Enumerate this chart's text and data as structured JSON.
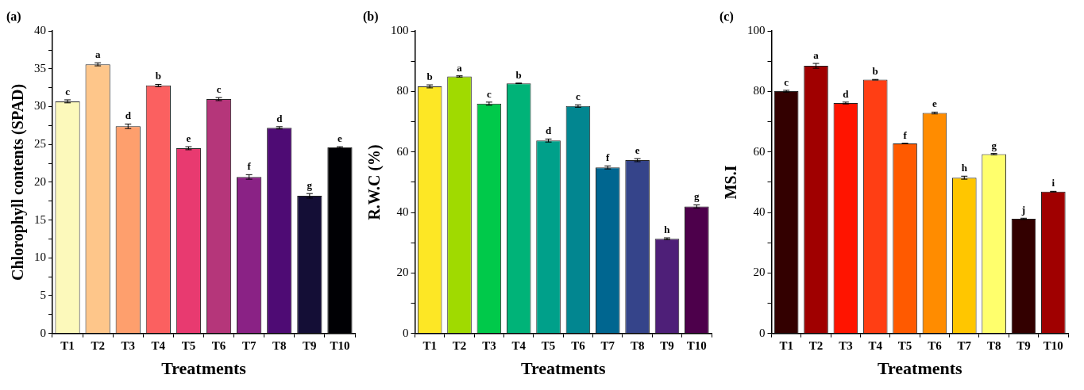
{
  "chart_data": [
    {
      "type": "bar",
      "title": "(a)",
      "xlabel": "Treatments",
      "ylabel": "Chlorophyll contents (SPAD)",
      "categories": [
        "T1",
        "T2",
        "T3",
        "T4",
        "T5",
        "T6",
        "T7",
        "T8",
        "T9",
        "T10"
      ],
      "values": [
        30.7,
        35.6,
        27.4,
        32.8,
        24.5,
        31.0,
        20.7,
        27.2,
        18.2,
        24.6
      ],
      "errors": [
        0.2,
        0.2,
        0.3,
        0.15,
        0.2,
        0.2,
        0.3,
        0.15,
        0.3,
        0.1
      ],
      "value_labels": [
        "c",
        "a",
        "d",
        "b",
        "e",
        "c",
        "f",
        "d",
        "g",
        "e"
      ],
      "colors": [
        "#fcf9bb",
        "#fec68a",
        "#fe9f6d",
        "#fb6060",
        "#e83a70",
        "#b5367a",
        "#8a2285",
        "#4e0b74",
        "#140e36",
        "#000004"
      ],
      "ylim": [
        0,
        40
      ],
      "yticks": [
        0,
        {
          "value": 2.5,
          "label": null
        },
        5,
        {
          "value": 7.5,
          "label": null
        },
        10,
        {
          "value": 12.5,
          "label": null
        },
        15,
        {
          "value": 17.5,
          "label": null
        },
        20,
        {
          "value": 22.5,
          "label": null
        },
        25,
        {
          "value": 27.5,
          "label": null
        },
        30,
        {
          "value": 32.5,
          "label": null
        },
        35,
        {
          "value": 37.5,
          "label": null
        },
        40
      ]
    },
    {
      "type": "bar",
      "title": "(b)",
      "xlabel": "Treatments",
      "ylabel": "R.W.C (%)",
      "categories": [
        "T1",
        "T2",
        "T3",
        "T4",
        "T5",
        "T6",
        "T7",
        "T8",
        "T9",
        "T10"
      ],
      "values": [
        81.7,
        85.0,
        76.0,
        82.7,
        63.8,
        75.2,
        54.9,
        57.3,
        31.3,
        42.0
      ],
      "errors": [
        0.5,
        0.2,
        0.5,
        0.1,
        0.5,
        0.4,
        0.5,
        0.5,
        0.3,
        0.5
      ],
      "value_labels": [
        "b",
        "a",
        "c",
        "b",
        "d",
        "c",
        "f",
        "e",
        "h",
        "g"
      ],
      "colors": [
        "#fde725",
        "#a0da00",
        "#00c94a",
        "#00b378",
        "#00a08a",
        "#028690",
        "#006690",
        "#35448a",
        "#4e1f78",
        "#4d004b"
      ],
      "ylim": [
        0,
        100
      ],
      "yticks": [
        0,
        {
          "value": 10,
          "label": null
        },
        20,
        {
          "value": 30,
          "label": null
        },
        40,
        {
          "value": 50,
          "label": null
        },
        60,
        {
          "value": 70,
          "label": null
        },
        80,
        {
          "value": 90,
          "label": null
        },
        100
      ]
    },
    {
      "type": "bar",
      "title": "(c)",
      "xlabel": "Treatments",
      "ylabel": "MS.I",
      "categories": [
        "T1",
        "T2",
        "T3",
        "T4",
        "T5",
        "T6",
        "T7",
        "T8",
        "T9",
        "T10"
      ],
      "values": [
        80.1,
        88.5,
        76.2,
        83.9,
        62.8,
        72.9,
        51.5,
        59.3,
        37.9,
        46.9
      ],
      "errors": [
        0.3,
        0.8,
        0.3,
        0.1,
        0.1,
        0.3,
        0.5,
        0.2,
        0.2,
        0.1
      ],
      "value_labels": [
        "c",
        "a",
        "d",
        "b",
        "f",
        "e",
        "h",
        "g",
        "j",
        "i"
      ],
      "colors": [
        "#330000",
        "#a00000",
        "#ff1400",
        "#ff3e14",
        "#ff5a00",
        "#ff8c00",
        "#ffc600",
        "#ffff6c",
        "#330000",
        "#a00000"
      ],
      "ylim": [
        0,
        100
      ],
      "yticks": [
        0,
        {
          "value": 10,
          "label": null
        },
        20,
        {
          "value": 30,
          "label": null
        },
        40,
        {
          "value": 50,
          "label": null
        },
        60,
        {
          "value": 70,
          "label": null
        },
        80,
        {
          "value": 90,
          "label": null
        },
        100
      ]
    }
  ]
}
